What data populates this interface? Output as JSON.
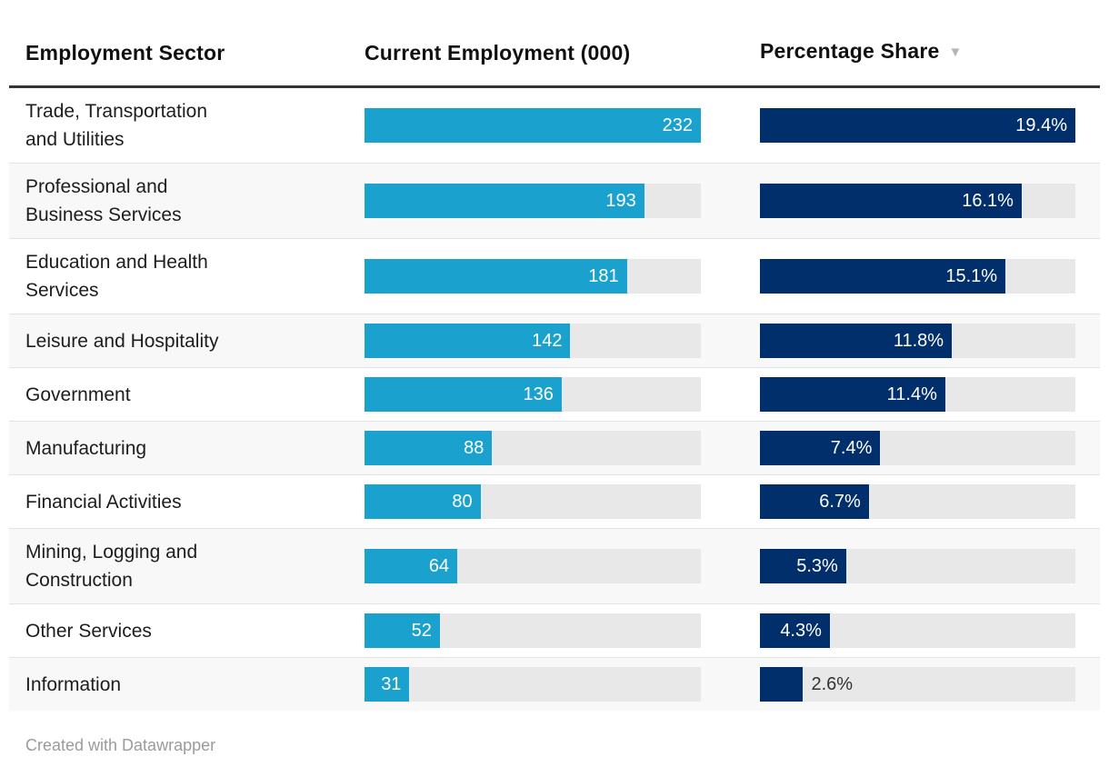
{
  "header": {
    "columns": [
      {
        "label": "Employment Sector"
      },
      {
        "label": "Current Employment (000)"
      },
      {
        "label": "Percentage Share"
      }
    ],
    "sort_icon": "▼",
    "sorted_column": "Percentage Share",
    "sort_direction": "descending"
  },
  "chart_data": {
    "type": "bar",
    "subtype": "table-with-bar-columns",
    "columns": [
      "Employment Sector",
      "Current Employment (000)",
      "Percentage Share"
    ],
    "employment_axis_max": 232,
    "share_axis_max": 19.4,
    "rows": [
      {
        "sector": "Trade, Transportation and Utilities",
        "sector_lines": [
          "Trade, Transportation",
          "and Utilities"
        ],
        "employment": 232,
        "employment_label": "232",
        "share": 19.4,
        "share_label": "19.4%",
        "share_label_inside": true
      },
      {
        "sector": "Professional and Business Services",
        "sector_lines": [
          "Professional and",
          "Business Services"
        ],
        "employment": 193,
        "employment_label": "193",
        "share": 16.1,
        "share_label": "16.1%",
        "share_label_inside": true
      },
      {
        "sector": "Education and Health Services",
        "sector_lines": [
          "Education and Health",
          "Services"
        ],
        "employment": 181,
        "employment_label": "181",
        "share": 15.1,
        "share_label": "15.1%",
        "share_label_inside": true
      },
      {
        "sector": "Leisure and Hospitality",
        "sector_lines": [
          "Leisure and Hospitality"
        ],
        "employment": 142,
        "employment_label": "142",
        "share": 11.8,
        "share_label": "11.8%",
        "share_label_inside": true
      },
      {
        "sector": "Government",
        "sector_lines": [
          "Government"
        ],
        "employment": 136,
        "employment_label": "136",
        "share": 11.4,
        "share_label": "11.4%",
        "share_label_inside": true
      },
      {
        "sector": "Manufacturing",
        "sector_lines": [
          "Manufacturing"
        ],
        "employment": 88,
        "employment_label": "88",
        "share": 7.4,
        "share_label": "7.4%",
        "share_label_inside": true
      },
      {
        "sector": "Financial Activities",
        "sector_lines": [
          "Financial Activities"
        ],
        "employment": 80,
        "employment_label": "80",
        "share": 6.7,
        "share_label": "6.7%",
        "share_label_inside": true
      },
      {
        "sector": "Mining, Logging and Construction",
        "sector_lines": [
          "Mining, Logging and",
          "Construction"
        ],
        "employment": 64,
        "employment_label": "64",
        "share": 5.3,
        "share_label": "5.3%",
        "share_label_inside": true
      },
      {
        "sector": "Other Services",
        "sector_lines": [
          "Other Services"
        ],
        "employment": 52,
        "employment_label": "52",
        "share": 4.3,
        "share_label": "4.3%",
        "share_label_inside": true
      },
      {
        "sector": "Information",
        "sector_lines": [
          "Information"
        ],
        "employment": 31,
        "employment_label": "31",
        "share": 2.6,
        "share_label": "2.6%",
        "share_label_inside": false
      }
    ]
  },
  "colors": {
    "employment_bar": "#1ba1ce",
    "share_bar": "#002f6c",
    "bar_track": "#e8e8e8",
    "alt_row_background": "#f8f8f8",
    "header_rule": "#333333",
    "row_divider": "#e3e3e3",
    "credit_text": "#9b9b9b"
  },
  "footer": {
    "credit": "Created with Datawrapper"
  }
}
